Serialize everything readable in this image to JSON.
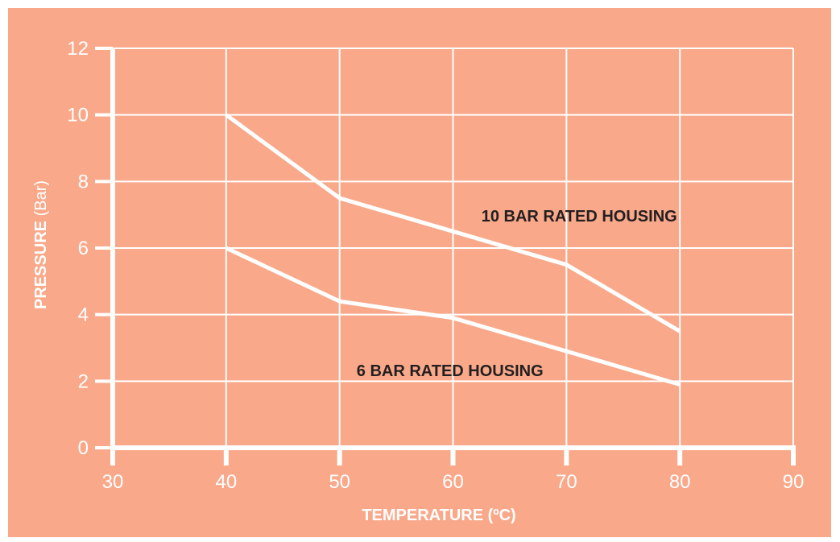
{
  "chart_data": {
    "type": "line",
    "title": "",
    "xlabel": "TEMPERATURE (ºC)",
    "ylabel_main": "PRESSURE",
    "ylabel_unit": " (Bar)",
    "xlim": [
      30,
      90
    ],
    "ylim": [
      0,
      12
    ],
    "x_ticks": [
      30,
      40,
      50,
      60,
      70,
      80,
      90
    ],
    "y_ticks": [
      0,
      2,
      4,
      6,
      8,
      10,
      12
    ],
    "grid": true,
    "series": [
      {
        "label": "10 BAR RATED HOUSING",
        "x": [
          40,
          50,
          60,
          70,
          80
        ],
        "y": [
          10,
          7.5,
          6.5,
          5.5,
          3.5
        ],
        "label_at": [
          62.5,
          6.8
        ]
      },
      {
        "label": "6 BAR RATED HOUSING",
        "x": [
          40,
          50,
          60,
          70,
          80
        ],
        "y": [
          6,
          4.4,
          3.9,
          2.9,
          1.9
        ],
        "label_at": [
          51.5,
          2.15
        ]
      }
    ],
    "colors": {
      "background": "#f9a88a",
      "lines": "#ffffff",
      "label_text": "#231f20"
    }
  }
}
